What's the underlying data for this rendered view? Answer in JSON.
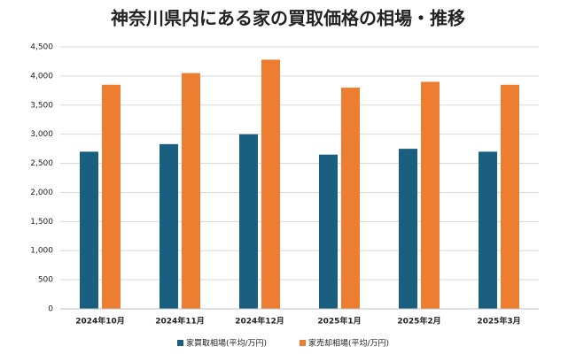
{
  "chart_data": {
    "type": "bar",
    "title": "神奈川県内にある家の買取価格の相場・推移",
    "categories": [
      "2024年10月",
      "2024年11月",
      "2024年12月",
      "2025年1月",
      "2025年2月",
      "2025年3月"
    ],
    "series": [
      {
        "name": "家買取相場(平均/万円)",
        "color": "#1a5e80",
        "values": [
          2700,
          2830,
          3000,
          2650,
          2750,
          2700
        ]
      },
      {
        "name": "家売却相場(平均/万円)",
        "color": "#ed7d31",
        "values": [
          3850,
          4050,
          4280,
          3800,
          3900,
          3850
        ]
      }
    ],
    "ylim": [
      0,
      4500
    ],
    "yticks": [
      0,
      500,
      {
        "value": 1000,
        "label": "1,000"
      },
      {
        "value": 1500,
        "label": "1,500"
      },
      {
        "value": 2000,
        "label": "2,000"
      },
      {
        "value": 2500,
        "label": "2,500"
      },
      {
        "value": 3000,
        "label": "3,000"
      },
      {
        "value": 3500,
        "label": "3,500"
      },
      {
        "value": 4000,
        "label": "4,000"
      },
      {
        "value": 4500,
        "label": "4,500"
      }
    ],
    "grid": true
  }
}
